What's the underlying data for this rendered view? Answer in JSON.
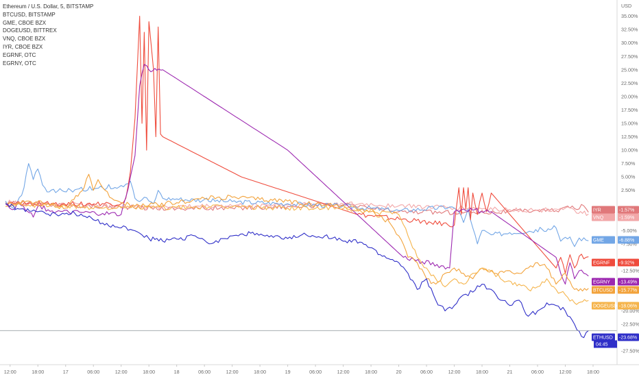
{
  "legend": [
    {
      "label": "Ethereum / U.S. Dollar, 5, BITSTAMP"
    },
    {
      "label": "BTCUSD, BITSTAMP"
    },
    {
      "label": "GME, CBOE BZX"
    },
    {
      "label": "DOGEUSD, BITTREX"
    },
    {
      "label": "VNQ, CBOE BZX"
    },
    {
      "label": "IYR, CBOE BZX"
    },
    {
      "label": "EGRNF, OTC"
    },
    {
      "label": "EGRNY, OTC"
    }
  ],
  "currency_label": "USD",
  "chart_data": {
    "type": "line",
    "title": "Ethereum / U.S. Dollar, 5, BITSTAMP",
    "y_unit": "percent change",
    "ylim": [
      -28.5,
      37
    ],
    "y_ticks": [
      "3",
      "35.00%",
      "32.50%",
      "30.00%",
      "27.50%",
      "25.00%",
      "22.50%",
      "20.00%",
      "17.50%",
      "15.00%",
      "12.50%",
      "10.00%",
      "7.50%",
      "5.00%",
      "2.50%",
      "-2.50%",
      "-5.00%",
      "-7.50%",
      "-12.50%",
      "-20.00%",
      "-22.50%",
      "-27.50%"
    ],
    "y_tick_values": [
      37,
      35,
      32.5,
      30,
      27.5,
      25,
      22.5,
      20,
      17.5,
      15,
      12.5,
      10,
      7.5,
      5,
      2.5,
      -2.5,
      -5,
      -7.5,
      -12.5,
      -20,
      -22.5,
      -27.5
    ],
    "x_ticks": [
      "12:00",
      "18:00",
      "17",
      "06:00",
      "12:00",
      "18:00",
      "18",
      "06:00",
      "12:00",
      "18:00",
      "19",
      "06:00",
      "12:00",
      "18:00",
      "20",
      "06:00",
      "12:00",
      "18:00",
      "21",
      "06:00",
      "12:00",
      "18:00"
    ],
    "x_tick_hours": [
      0,
      6,
      12,
      18,
      24,
      30,
      36,
      42,
      48,
      54,
      60,
      66,
      72,
      78,
      84,
      90,
      96,
      102,
      108,
      114,
      120,
      126
    ],
    "x_range_hours": [
      -1,
      130
    ],
    "x_start": "16 12:00",
    "series": [
      {
        "name": "IYR",
        "tag": "-1.57%",
        "last": -1.57,
        "color": "#e0787a",
        "points": [
          [
            -1,
            0.3
          ],
          [
            2,
            0.2
          ],
          [
            12,
            -0.3
          ],
          [
            24,
            -0.6
          ],
          [
            36,
            -0.9
          ],
          [
            48,
            -0.8
          ],
          [
            60,
            -0.5
          ],
          [
            72,
            -0.2
          ],
          [
            84,
            -1.5
          ],
          [
            96,
            -1.6
          ],
          [
            108,
            -1.5
          ],
          [
            114,
            -1.2
          ],
          [
            118,
            -1.3
          ],
          [
            120,
            -0.6
          ],
          [
            122,
            -0.9
          ],
          [
            124,
            -0.4
          ],
          [
            125,
            -1.6
          ]
        ]
      },
      {
        "name": "VNQ",
        "tag": "-1.59%",
        "last": -1.59,
        "color": "#f2a7a8",
        "points": [
          [
            -1,
            0.3
          ],
          [
            2,
            0.1
          ],
          [
            12,
            -0.2
          ],
          [
            24,
            -0.5
          ],
          [
            36,
            -0.6
          ],
          [
            48,
            -0.4
          ],
          [
            60,
            -0.2
          ],
          [
            72,
            0
          ],
          [
            84,
            -0.4
          ],
          [
            96,
            -0.8
          ],
          [
            108,
            -1.1
          ],
          [
            114,
            -1.3
          ],
          [
            118,
            -1.0
          ],
          [
            120,
            -0.8
          ],
          [
            122,
            -1.2
          ],
          [
            125,
            -1.9
          ]
        ]
      },
      {
        "name": "GME",
        "tag": "-6.88%",
        "last": -6.88,
        "color": "#72a6e6",
        "points": [
          [
            -1,
            0.5
          ],
          [
            1,
            -1.2
          ],
          [
            3,
            3.0
          ],
          [
            4,
            7.5
          ],
          [
            5,
            4.5
          ],
          [
            6,
            6.5
          ],
          [
            7,
            3.5
          ],
          [
            8,
            2.2
          ],
          [
            14,
            2.6
          ],
          [
            20,
            3.0
          ],
          [
            24,
            3.4
          ],
          [
            26,
            4.2
          ],
          [
            27,
            1.0
          ],
          [
            28,
            0.4
          ],
          [
            29,
            1.2
          ],
          [
            30,
            0.5
          ],
          [
            31,
            0.0
          ],
          [
            32,
            2.5
          ],
          [
            33,
            1.0
          ],
          [
            36,
            0.9
          ],
          [
            48,
            0.4
          ],
          [
            60,
            0
          ],
          [
            72,
            -0.4
          ],
          [
            84,
            -1.3
          ],
          [
            95,
            -0.6
          ],
          [
            96,
            -0.8
          ],
          [
            97,
            -1.5
          ],
          [
            98,
            -3.5
          ],
          [
            99,
            -1.0
          ],
          [
            100,
            -4.5
          ],
          [
            101,
            -7.5
          ],
          [
            102,
            -5.0
          ],
          [
            104,
            -5.8
          ],
          [
            108,
            -5.4
          ],
          [
            115,
            -4.8
          ],
          [
            118,
            -4.5
          ],
          [
            119,
            -7.0
          ],
          [
            121,
            -6.2
          ],
          [
            122,
            -8.0
          ],
          [
            123,
            -6.4
          ],
          [
            125,
            -6.9
          ]
        ]
      },
      {
        "name": "EGRNF",
        "tag": "-9.92%",
        "last": -9.92,
        "color": "#ef4b3c",
        "points": [
          [
            -1,
            0
          ],
          [
            24,
            0
          ],
          [
            25,
            1.0
          ],
          [
            26,
            6
          ],
          [
            27,
            16
          ],
          [
            28,
            35
          ],
          [
            28.5,
            15
          ],
          [
            29,
            32
          ],
          [
            29.5,
            10
          ],
          [
            30,
            34
          ],
          [
            31,
            25
          ],
          [
            31.5,
            12.5
          ],
          [
            32,
            33
          ],
          [
            32.5,
            13
          ],
          [
            33,
            12.5
          ],
          [
            50,
            5
          ],
          [
            75,
            -2
          ],
          [
            96,
            -4
          ],
          [
            97,
            3
          ],
          [
            97.5,
            -2
          ],
          [
            98,
            3
          ],
          [
            98.5,
            -1
          ],
          [
            99,
            3
          ],
          [
            99.5,
            -3
          ],
          [
            100,
            2
          ],
          [
            101,
            -2
          ],
          [
            102,
            2
          ],
          [
            103,
            -1.5
          ],
          [
            104,
            2
          ],
          [
            118,
            -12
          ],
          [
            119,
            -10
          ],
          [
            120,
            -13
          ],
          [
            121,
            -9.5
          ],
          [
            122,
            -12
          ],
          [
            123,
            -9.8
          ],
          [
            125,
            -9.9
          ]
        ]
      },
      {
        "name": "EGRNY",
        "tag": "-13.49%",
        "last": -13.49,
        "color": "#9c27b0",
        "points": [
          [
            -1,
            0
          ],
          [
            1,
            -1
          ],
          [
            2,
            0
          ],
          [
            5,
            -2.5
          ],
          [
            6,
            -0.5
          ],
          [
            10,
            -1.5
          ],
          [
            20,
            -1.8
          ],
          [
            24,
            -2
          ],
          [
            25,
            1.2
          ],
          [
            26,
            5
          ],
          [
            27,
            9
          ],
          [
            28,
            22
          ],
          [
            29,
            26
          ],
          [
            30,
            25
          ],
          [
            33,
            25
          ],
          [
            60,
            10
          ],
          [
            75,
            -2
          ],
          [
            85,
            -10
          ],
          [
            95,
            -12
          ],
          [
            96,
            -1.5
          ],
          [
            98,
            -1
          ],
          [
            100,
            -1.2
          ],
          [
            104,
            -1.5
          ],
          [
            118,
            -10
          ],
          [
            119,
            -13
          ],
          [
            120,
            -15
          ],
          [
            121,
            -11
          ],
          [
            122,
            -14
          ],
          [
            123,
            -12.5
          ],
          [
            125,
            -13.5
          ]
        ]
      },
      {
        "name": "BTCUSD",
        "tag": "-15.77%",
        "last": -15.77,
        "color": "#f2a23a",
        "points": [
          [
            -1,
            -0.5
          ],
          [
            4,
            0.5
          ],
          [
            8,
            0
          ],
          [
            12,
            -0.8
          ],
          [
            16,
            3.0
          ],
          [
            17,
            5.5
          ],
          [
            18,
            2.5
          ],
          [
            19,
            4.5
          ],
          [
            20,
            3.0
          ],
          [
            22,
            1.0
          ],
          [
            24,
            0.2
          ],
          [
            27,
            -0.5
          ],
          [
            30,
            -0.3
          ],
          [
            36,
            0.2
          ],
          [
            42,
            1.0
          ],
          [
            48,
            1.2
          ],
          [
            54,
            0.8
          ],
          [
            60,
            0.5
          ],
          [
            66,
            -0.2
          ],
          [
            72,
            -0.3
          ],
          [
            78,
            -1.5
          ],
          [
            82,
            -3.5
          ],
          [
            84,
            -6
          ],
          [
            86,
            -10
          ],
          [
            88,
            -11
          ],
          [
            90,
            -14
          ],
          [
            92,
            -15
          ],
          [
            94,
            -13
          ],
          [
            96,
            -12
          ],
          [
            98,
            -13
          ],
          [
            100,
            -14
          ],
          [
            102,
            -12
          ],
          [
            105,
            -13
          ],
          [
            108,
            -12.5
          ],
          [
            110,
            -13
          ],
          [
            112,
            -12
          ],
          [
            114,
            -11
          ],
          [
            116,
            -12
          ],
          [
            118,
            -15
          ],
          [
            120,
            -13
          ],
          [
            122,
            -16
          ],
          [
            125,
            -15.8
          ]
        ]
      },
      {
        "name": "DOGEUSD",
        "tag": "-18.06%",
        "last": -18.06,
        "color": "#f5b44b",
        "points": [
          [
            -1,
            0
          ],
          [
            12,
            -0.5
          ],
          [
            24,
            -0.8
          ],
          [
            36,
            -0.7
          ],
          [
            48,
            -0.6
          ],
          [
            60,
            -0.8
          ],
          [
            72,
            -0.9
          ],
          [
            84,
            -2
          ],
          [
            86,
            -6
          ],
          [
            88,
            -10
          ],
          [
            90,
            -12
          ],
          [
            92,
            -14
          ],
          [
            94,
            -15.5
          ],
          [
            96,
            -14
          ],
          [
            98,
            -15
          ],
          [
            100,
            -13
          ],
          [
            102,
            -12
          ],
          [
            104,
            -12.5
          ],
          [
            106,
            -14
          ],
          [
            110,
            -15
          ],
          [
            112,
            -16
          ],
          [
            114,
            -15.5
          ],
          [
            116,
            -14
          ],
          [
            118,
            -16
          ],
          [
            120,
            -17
          ],
          [
            122,
            -18.5
          ],
          [
            125,
            -18.06
          ]
        ]
      },
      {
        "name": "ETHUSD",
        "tag": "-23.68%",
        "last": -23.68,
        "color": "#2f2fc8",
        "points": [
          [
            -1,
            0
          ],
          [
            2,
            -1.0
          ],
          [
            6,
            -1.5
          ],
          [
            10,
            -2.0
          ],
          [
            14,
            -1.8
          ],
          [
            18,
            -3.0
          ],
          [
            20,
            -3.6
          ],
          [
            24,
            -4.5
          ],
          [
            26,
            -4.8
          ],
          [
            28,
            -5.5
          ],
          [
            30,
            -6.5
          ],
          [
            33,
            -7.0
          ],
          [
            36,
            -6.6
          ],
          [
            40,
            -6.0
          ],
          [
            42,
            -6.8
          ],
          [
            44,
            -7.3
          ],
          [
            46,
            -6.5
          ],
          [
            48,
            -6.0
          ],
          [
            52,
            -5.5
          ],
          [
            56,
            -6.2
          ],
          [
            60,
            -6.5
          ],
          [
            64,
            -5.8
          ],
          [
            68,
            -6.0
          ],
          [
            72,
            -7.0
          ],
          [
            76,
            -7.2
          ],
          [
            80,
            -9.5
          ],
          [
            84,
            -11
          ],
          [
            86,
            -13
          ],
          [
            88,
            -16
          ],
          [
            90,
            -14
          ],
          [
            92,
            -18
          ],
          [
            94,
            -20
          ],
          [
            96,
            -19
          ],
          [
            98,
            -17
          ],
          [
            100,
            -16.5
          ],
          [
            102,
            -15
          ],
          [
            104,
            -16
          ],
          [
            106,
            -18
          ],
          [
            108,
            -19
          ],
          [
            110,
            -18
          ],
          [
            112,
            -21
          ],
          [
            114,
            -20
          ],
          [
            116,
            -18.5
          ],
          [
            118,
            -19
          ],
          [
            120,
            -20
          ],
          [
            122,
            -22.5
          ],
          [
            124,
            -25
          ],
          [
            125,
            -23.68
          ]
        ]
      }
    ],
    "crosshair_value": -23.68,
    "time_tag": "04:45",
    "grid": false,
    "legend_position": "top-left"
  }
}
